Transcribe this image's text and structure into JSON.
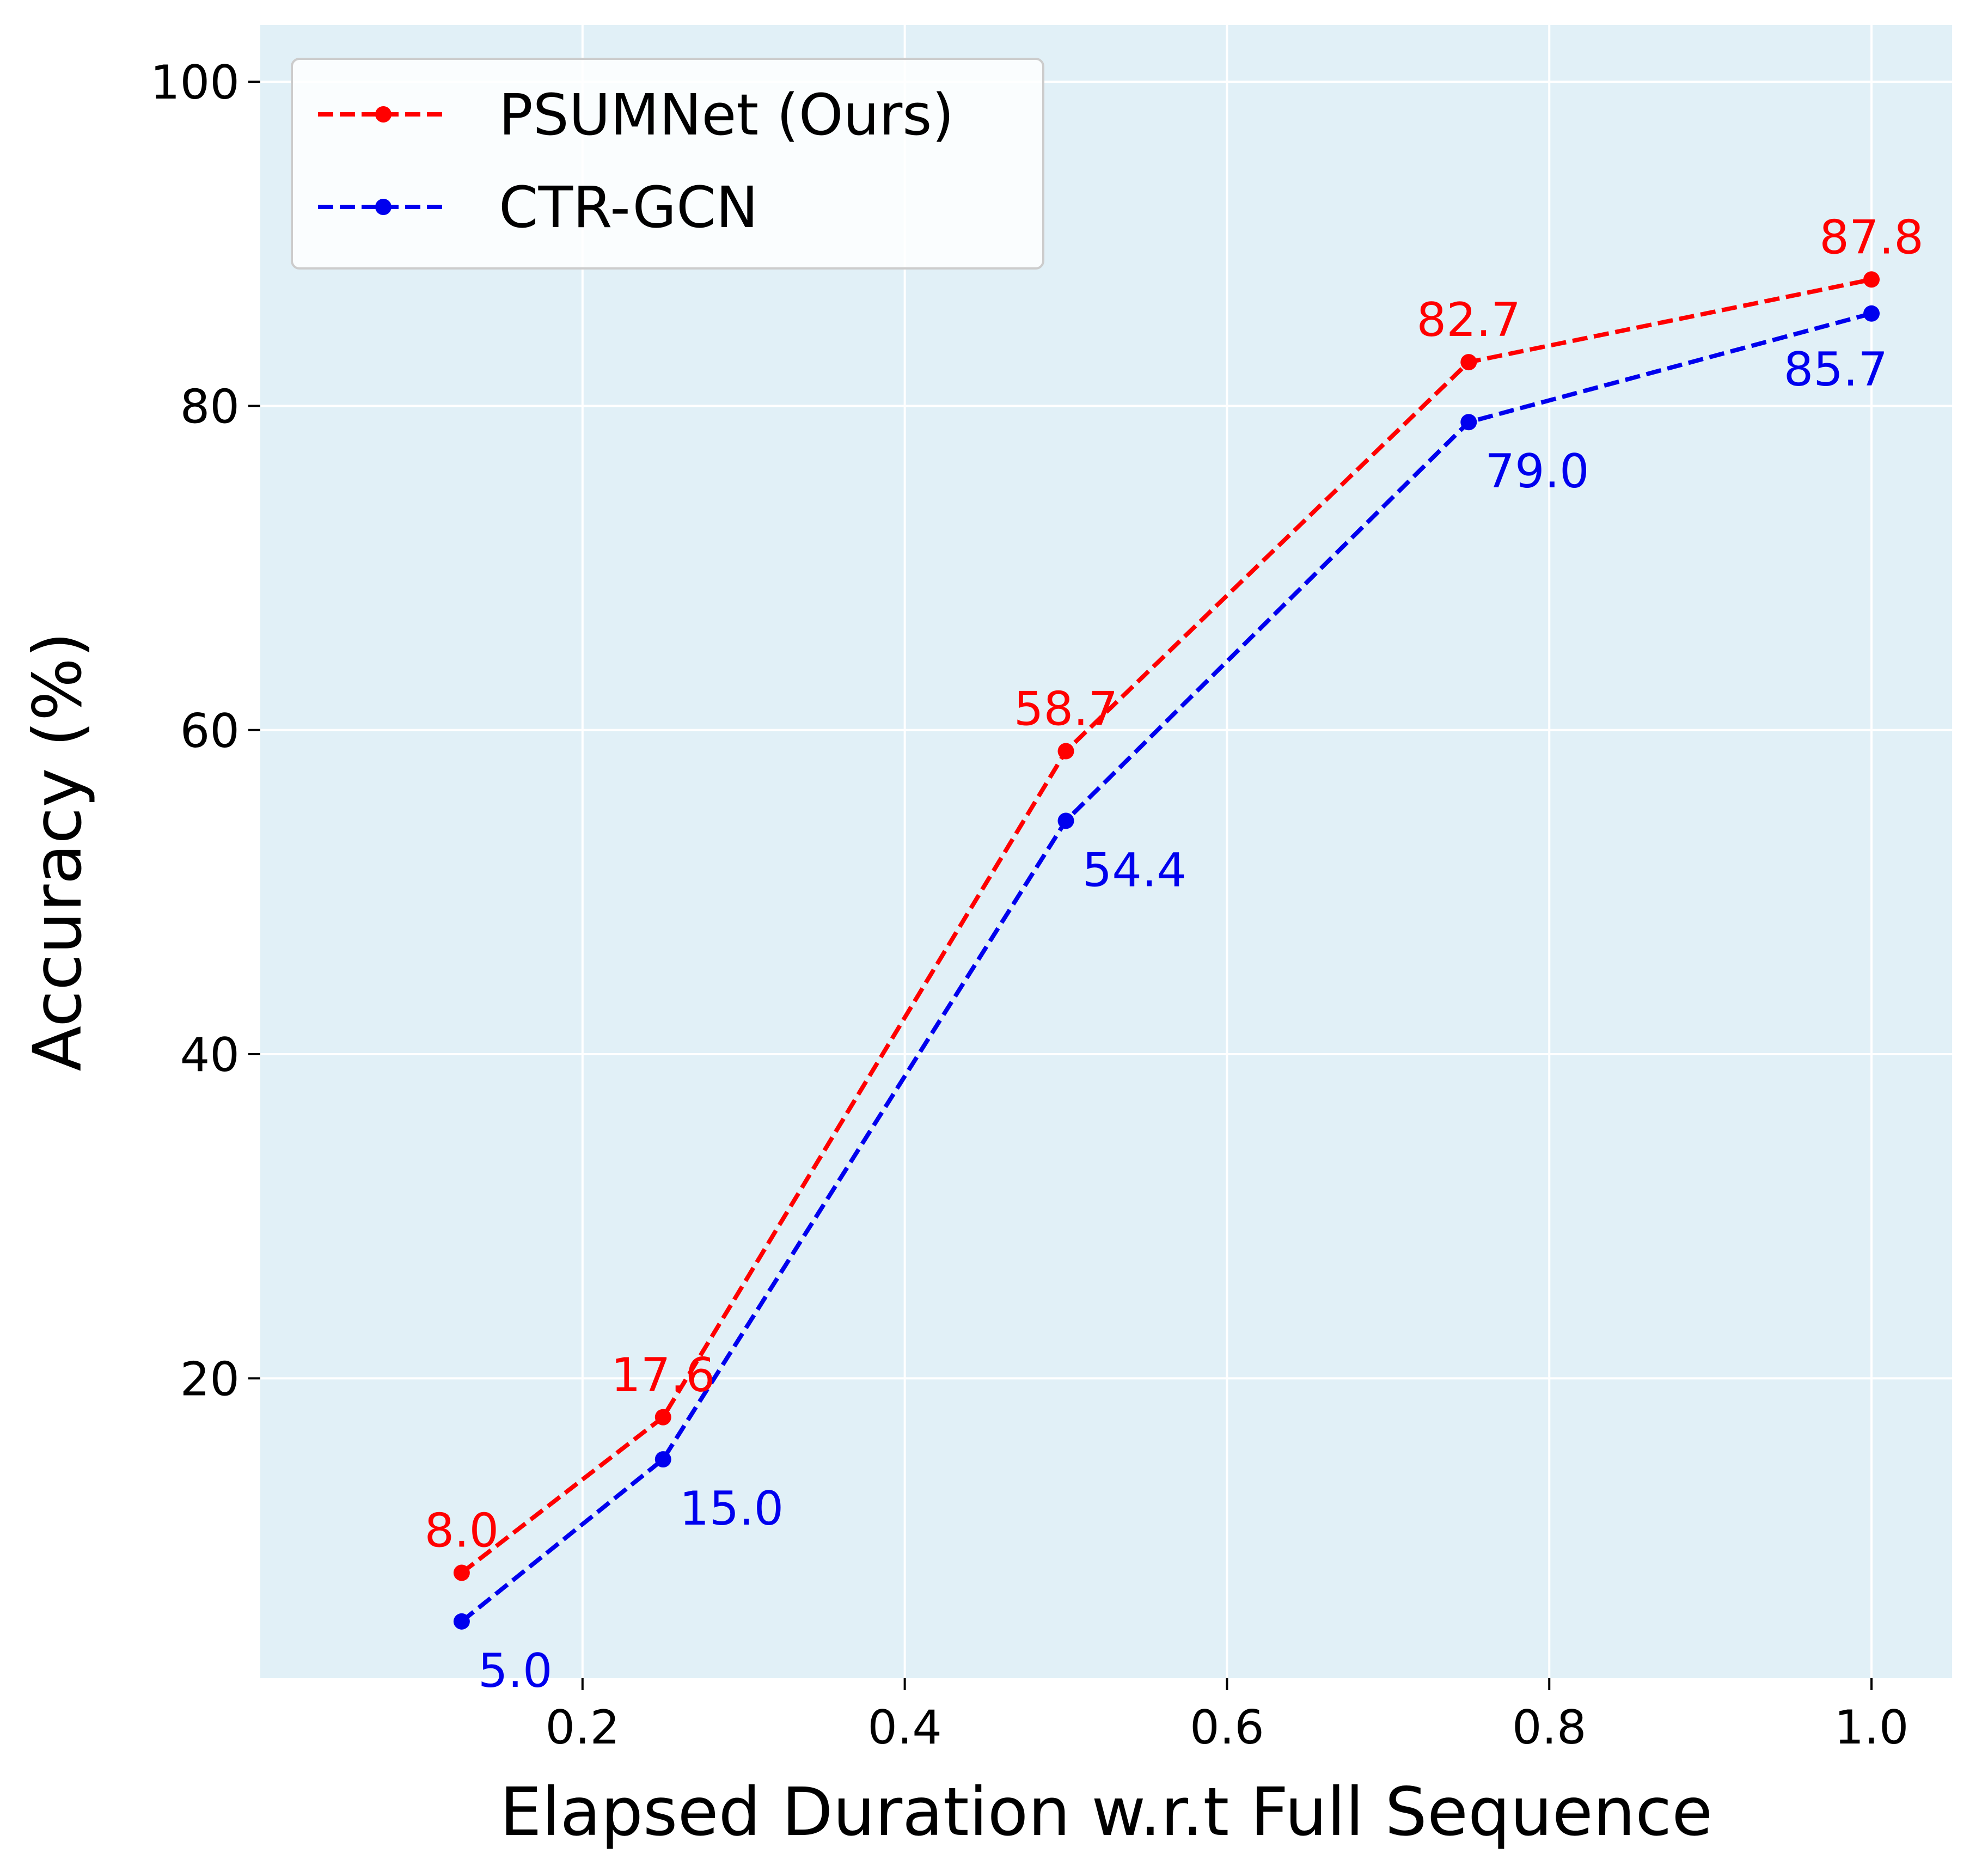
{
  "chart_data": {
    "type": "line",
    "xlabel": "Elapsed Duration w.r.t Full Sequence",
    "ylabel": "Accuracy (%)",
    "xlim": [
      0.0,
      1.05
    ],
    "ylim": [
      1.5,
      103.5
    ],
    "x_ticks": [
      0.2,
      0.4,
      0.6,
      0.8,
      1.0
    ],
    "x_tick_labels": [
      "0.2",
      "0.4",
      "0.6",
      "0.8",
      "1.0"
    ],
    "y_ticks": [
      20,
      40,
      60,
      80,
      100
    ],
    "y_tick_labels": [
      "20",
      "40",
      "60",
      "80",
      "100"
    ],
    "grid": true,
    "background_color": "#e1f0f7",
    "legend_position": "top-left",
    "x": [
      0.125,
      0.25,
      0.5,
      0.75,
      1.0
    ],
    "series": [
      {
        "name": "PSUMNet (Ours)",
        "color": "#ff0000",
        "line_style": "dashed",
        "marker": "circle",
        "values": [
          8.0,
          17.6,
          58.7,
          82.7,
          87.8
        ],
        "labels": [
          "8.0",
          "17.6",
          "58.7",
          "82.7",
          "87.8"
        ],
        "label_placement": "above"
      },
      {
        "name": "CTR-GCN",
        "color": "#0000ee",
        "line_style": "dashed",
        "marker": "circle",
        "values": [
          5.0,
          15.0,
          54.4,
          79.0,
          85.7
        ],
        "labels": [
          "5.0",
          "15.0",
          "54.4",
          "79.0",
          "85.7"
        ],
        "label_placement": "below-right"
      }
    ]
  }
}
